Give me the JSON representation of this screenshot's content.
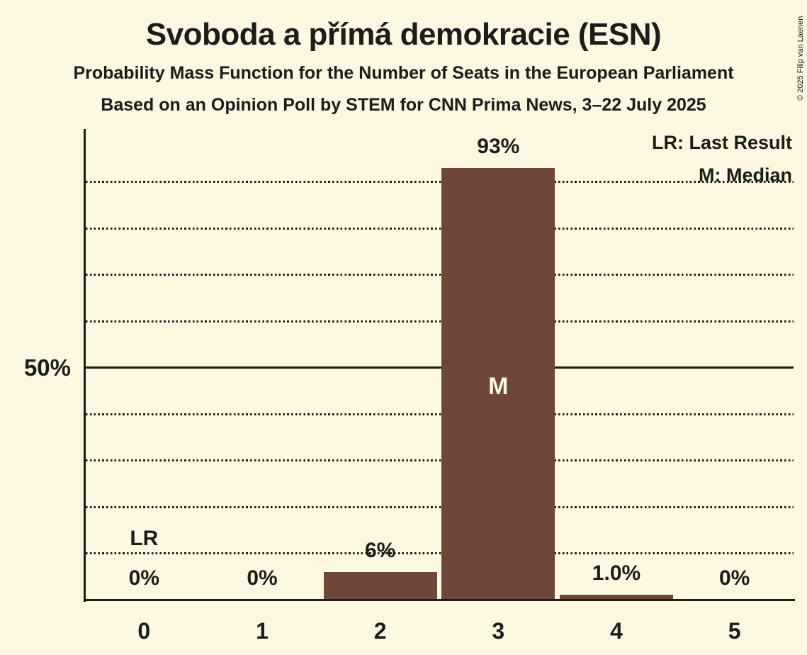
{
  "page": {
    "title": "Svoboda a přímá demokracie (ESN)",
    "subtitle": "Probability Mass Function for the Number of Seats in the European Parliament",
    "source_line": "Based on an Opinion Poll by STEM for CNN Prima News, 3–22 July 2025",
    "copyright": "© 2025 Filip van Laenen"
  },
  "legend": {
    "last_result": "LR: Last Result",
    "median": "M: Median"
  },
  "y_axis": {
    "tick_label": "50%",
    "tick_value": 50
  },
  "chart_data": {
    "type": "bar",
    "title": "Svoboda a přímá demokracie (ESN)",
    "categories": [
      "0",
      "1",
      "2",
      "3",
      "4",
      "5"
    ],
    "values": [
      0,
      0,
      6,
      93,
      1.0,
      0
    ],
    "value_labels": [
      "0%",
      "0%",
      "6%",
      "93%",
      "1.0%",
      "0%"
    ],
    "ylim": [
      0,
      100
    ],
    "grid": "dotted-horizontal",
    "gridlines_dotted_pct": [
      10,
      20,
      30,
      40,
      60,
      70,
      80,
      90
    ],
    "gridline_solid_pct": 50,
    "legend_position": "top-right",
    "annotations": {
      "lr_label": "LR",
      "lr_category_index": 0,
      "median_label": "M",
      "median_category_index": 3
    },
    "colors": {
      "background": "#FCF7E1",
      "bar": "#6F4739",
      "text": "#1D1C18",
      "median_text": "#FCF7E1"
    }
  }
}
